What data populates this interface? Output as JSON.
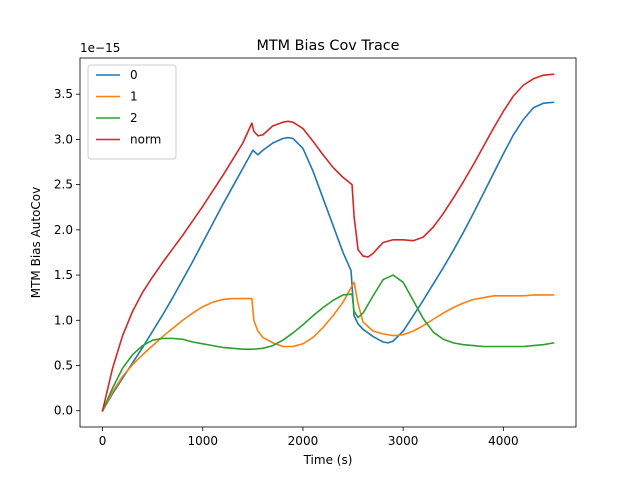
{
  "chart_data": {
    "type": "line",
    "title": "MTM Bias Cov Trace",
    "xlabel": "Time (s)",
    "ylabel": "MTM Bias AutoCov",
    "y_offset_label": "1e−15",
    "xlim": [
      -225,
      4725
    ],
    "ylim": [
      -0.18,
      3.9
    ],
    "x_ticks": [
      0,
      1000,
      2000,
      3000,
      4000
    ],
    "x_tick_labels": [
      "0",
      "1000",
      "2000",
      "3000",
      "4000"
    ],
    "y_ticks": [
      0.0,
      0.5,
      1.0,
      1.5,
      2.0,
      2.5,
      3.0,
      3.5
    ],
    "y_tick_labels": [
      "0.0",
      "0.5",
      "1.0",
      "1.5",
      "2.0",
      "2.5",
      "3.0",
      "3.5"
    ],
    "grid": false,
    "legend_position": "top-left",
    "series": [
      {
        "name": "0",
        "color": "#1f77b4",
        "x": [
          0,
          100,
          200,
          300,
          400,
          500,
          600,
          700,
          800,
          900,
          1000,
          1100,
          1200,
          1300,
          1400,
          1500,
          1550,
          1600,
          1700,
          1800,
          1850,
          1900,
          2000,
          2100,
          2200,
          2300,
          2400,
          2480,
          2510,
          2550,
          2600,
          2700,
          2800,
          2850,
          2900,
          3000,
          3100,
          3200,
          3300,
          3400,
          3500,
          3600,
          3700,
          3800,
          3900,
          4000,
          4100,
          4200,
          4300,
          4400,
          4500
        ],
        "y": [
          0.0,
          0.19,
          0.36,
          0.53,
          0.7,
          0.88,
          1.06,
          1.25,
          1.45,
          1.65,
          1.86,
          2.07,
          2.28,
          2.48,
          2.68,
          2.88,
          2.83,
          2.88,
          2.96,
          3.01,
          3.02,
          3.01,
          2.9,
          2.65,
          2.35,
          2.05,
          1.75,
          1.55,
          1.05,
          0.96,
          0.9,
          0.82,
          0.76,
          0.75,
          0.77,
          0.88,
          1.05,
          1.22,
          1.4,
          1.58,
          1.77,
          1.97,
          2.18,
          2.4,
          2.62,
          2.84,
          3.05,
          3.22,
          3.35,
          3.4,
          3.41
        ]
      },
      {
        "name": "1",
        "color": "#ff7f0e",
        "x": [
          0,
          100,
          200,
          300,
          400,
          500,
          600,
          700,
          800,
          900,
          1000,
          1100,
          1200,
          1300,
          1400,
          1490,
          1510,
          1550,
          1600,
          1700,
          1800,
          1900,
          2000,
          2100,
          2200,
          2300,
          2400,
          2490,
          2510,
          2550,
          2600,
          2700,
          2800,
          2900,
          3000,
          3100,
          3200,
          3300,
          3400,
          3500,
          3600,
          3700,
          3800,
          3900,
          4000,
          4100,
          4200,
          4300,
          4400,
          4500
        ],
        "y": [
          0.0,
          0.21,
          0.38,
          0.51,
          0.62,
          0.72,
          0.82,
          0.91,
          1.0,
          1.08,
          1.15,
          1.2,
          1.23,
          1.24,
          1.24,
          1.24,
          1.0,
          0.88,
          0.81,
          0.75,
          0.71,
          0.71,
          0.74,
          0.81,
          0.92,
          1.05,
          1.2,
          1.38,
          1.42,
          1.18,
          0.98,
          0.88,
          0.85,
          0.83,
          0.84,
          0.88,
          0.94,
          1.01,
          1.08,
          1.14,
          1.19,
          1.23,
          1.25,
          1.27,
          1.27,
          1.27,
          1.27,
          1.28,
          1.28,
          1.28
        ]
      },
      {
        "name": "2",
        "color": "#2ca02c",
        "x": [
          0,
          100,
          200,
          300,
          400,
          500,
          600,
          700,
          800,
          900,
          1000,
          1100,
          1200,
          1300,
          1400,
          1500,
          1600,
          1700,
          1800,
          1900,
          2000,
          2100,
          2200,
          2300,
          2400,
          2490,
          2510,
          2550,
          2600,
          2700,
          2800,
          2900,
          3000,
          3100,
          3200,
          3300,
          3400,
          3500,
          3600,
          3700,
          3800,
          3900,
          4000,
          4100,
          4200,
          4300,
          4400,
          4500
        ],
        "y": [
          0.0,
          0.25,
          0.47,
          0.62,
          0.72,
          0.78,
          0.8,
          0.8,
          0.79,
          0.76,
          0.74,
          0.72,
          0.7,
          0.69,
          0.68,
          0.68,
          0.69,
          0.72,
          0.78,
          0.86,
          0.95,
          1.05,
          1.14,
          1.22,
          1.28,
          1.29,
          1.1,
          1.03,
          1.08,
          1.27,
          1.45,
          1.5,
          1.42,
          1.22,
          1.02,
          0.87,
          0.79,
          0.75,
          0.73,
          0.72,
          0.71,
          0.71,
          0.71,
          0.71,
          0.71,
          0.72,
          0.73,
          0.75
        ]
      },
      {
        "name": "norm",
        "color": "#d62728",
        "x": [
          0,
          100,
          200,
          300,
          400,
          500,
          600,
          700,
          800,
          900,
          1000,
          1100,
          1200,
          1300,
          1400,
          1490,
          1510,
          1550,
          1600,
          1700,
          1800,
          1850,
          1900,
          2000,
          2100,
          2200,
          2300,
          2400,
          2490,
          2510,
          2550,
          2600,
          2650,
          2700,
          2800,
          2900,
          3000,
          3100,
          3200,
          3300,
          3400,
          3500,
          3600,
          3700,
          3800,
          3900,
          4000,
          4100,
          4200,
          4300,
          4400,
          4500
        ],
        "y": [
          0.0,
          0.47,
          0.83,
          1.1,
          1.31,
          1.48,
          1.64,
          1.79,
          1.94,
          2.1,
          2.26,
          2.43,
          2.6,
          2.78,
          2.96,
          3.18,
          3.09,
          3.04,
          3.05,
          3.15,
          3.19,
          3.2,
          3.19,
          3.12,
          2.98,
          2.83,
          2.69,
          2.58,
          2.5,
          2.15,
          1.78,
          1.71,
          1.7,
          1.74,
          1.86,
          1.89,
          1.89,
          1.88,
          1.92,
          2.03,
          2.18,
          2.35,
          2.53,
          2.72,
          2.92,
          3.12,
          3.31,
          3.48,
          3.6,
          3.67,
          3.71,
          3.72
        ]
      }
    ]
  }
}
